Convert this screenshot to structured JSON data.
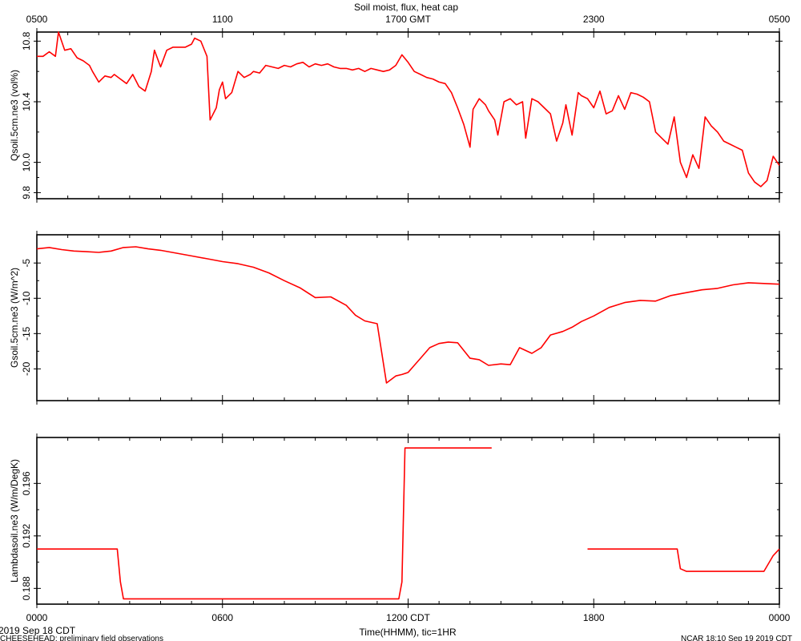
{
  "title": "Soil moist, flux, heat cap",
  "top_axis_ticks": [
    "0500",
    "1100",
    "1700 GMT",
    "2300",
    "0500"
  ],
  "bottom_axis_ticks": [
    "0000",
    "0600",
    "1200 CDT",
    "1800",
    "0000"
  ],
  "x_axis_label": "Time(HHMM), tic=1HR",
  "date_label": "2019 Sep 18 CDT",
  "footer_left": "CHEESEHEAD: preliminary field observations",
  "footer_right": "NCAR 18:10 Sep 19 2019 CDT",
  "colors": {
    "line": "#ff0000",
    "axis": "#000000",
    "background": "#ffffff"
  },
  "chart_data": [
    {
      "type": "line",
      "ylabel": "Qsoil.5cm.ne3 (vol%)",
      "xlim": [
        0,
        24
      ],
      "ylim": [
        9.76,
        10.86
      ],
      "yticks": [
        9.8,
        10.0,
        10.4,
        10.8
      ],
      "ytick_labels": [
        "9.8",
        "10.0",
        "10.4",
        "10.8"
      ],
      "series": [
        {
          "x": [
            0,
            0.2,
            0.4,
            0.6,
            0.7,
            0.9,
            1.1,
            1.3,
            1.5,
            1.7,
            1.8,
            2.0,
            2.2,
            2.4,
            2.5,
            2.7,
            2.9,
            3.1,
            3.3,
            3.5,
            3.7,
            3.8,
            4.0,
            4.2,
            4.4,
            4.6,
            4.8,
            5.0,
            5.1,
            5.3,
            5.5,
            5.6,
            5.8,
            5.9,
            6.0,
            6.1,
            6.3,
            6.5,
            6.7,
            6.9,
            7.0,
            7.2,
            7.4,
            7.6,
            7.8,
            8.0,
            8.2,
            8.4,
            8.6,
            8.8,
            9.0,
            9.2,
            9.4,
            9.6,
            9.8,
            10.0,
            10.2,
            10.4,
            10.6,
            10.8,
            11.0,
            11.2,
            11.4,
            11.6,
            11.8,
            12.0,
            12.2,
            12.4,
            12.6,
            12.8,
            13.0,
            13.2,
            13.4,
            13.6,
            13.8,
            14.0,
            14.1,
            14.3,
            14.5,
            14.6,
            14.8,
            14.9,
            15.1,
            15.3,
            15.5,
            15.7,
            15.8,
            16.0,
            16.2,
            16.4,
            16.6,
            16.8,
            17.0,
            17.1,
            17.3,
            17.5,
            17.6,
            17.8,
            18.0,
            18.2,
            18.4,
            18.6,
            18.8,
            19.0,
            19.2,
            19.4,
            19.6,
            19.8,
            20.0,
            20.2,
            20.4,
            20.6,
            20.8,
            21.0,
            21.2,
            21.4,
            21.6,
            21.8,
            22.0,
            22.2,
            22.4,
            22.6,
            22.8,
            23.0,
            23.2,
            23.4,
            23.6,
            23.8,
            24.0
          ],
          "y": [
            10.7,
            10.7,
            10.73,
            10.7,
            10.86,
            10.74,
            10.75,
            10.69,
            10.67,
            10.64,
            10.6,
            10.53,
            10.57,
            10.56,
            10.58,
            10.55,
            10.52,
            10.58,
            10.5,
            10.47,
            10.6,
            10.74,
            10.63,
            10.74,
            10.76,
            10.76,
            10.76,
            10.78,
            10.82,
            10.8,
            10.7,
            10.28,
            10.36,
            10.48,
            10.53,
            10.42,
            10.46,
            10.6,
            10.56,
            10.58,
            10.6,
            10.59,
            10.64,
            10.63,
            10.62,
            10.64,
            10.63,
            10.65,
            10.66,
            10.63,
            10.65,
            10.64,
            10.65,
            10.63,
            10.62,
            10.62,
            10.61,
            10.62,
            10.6,
            10.62,
            10.61,
            10.6,
            10.61,
            10.64,
            10.71,
            10.66,
            10.6,
            10.58,
            10.56,
            10.55,
            10.53,
            10.52,
            10.46,
            10.36,
            10.25,
            10.1,
            10.35,
            10.42,
            10.38,
            10.34,
            10.28,
            10.18,
            10.4,
            10.42,
            10.38,
            10.4,
            10.16,
            10.42,
            10.4,
            10.36,
            10.32,
            10.14,
            10.26,
            10.38,
            10.18,
            10.46,
            10.44,
            10.42,
            10.36,
            10.47,
            10.32,
            10.34,
            10.44,
            10.35,
            10.46,
            10.45,
            10.43,
            10.4,
            10.2,
            10.16,
            10.12,
            10.3,
            10.0,
            9.9,
            10.05,
            9.96,
            10.3,
            10.24,
            10.2,
            10.14,
            10.12,
            10.1,
            10.08,
            9.93,
            9.87,
            9.84,
            9.88,
            10.04,
            9.98
          ]
        }
      ]
    },
    {
      "type": "line",
      "ylabel": "Gsoil.5cm.ne3 (W/m^2)",
      "xlim": [
        0,
        24
      ],
      "ylim": [
        -24.5,
        -1.0
      ],
      "yticks": [
        -20,
        -15,
        -10,
        -5
      ],
      "ytick_labels": [
        "-20",
        "-15",
        "-10",
        "-5"
      ],
      "series": [
        {
          "x": [
            0,
            0.4,
            0.8,
            1.2,
            1.6,
            2.0,
            2.4,
            2.8,
            3.2,
            3.6,
            4.0,
            4.5,
            5.0,
            5.5,
            6.0,
            6.5,
            7.0,
            7.5,
            8.0,
            8.5,
            9.0,
            9.5,
            10.0,
            10.3,
            10.6,
            11.0,
            11.3,
            11.6,
            11.8,
            12.0,
            12.2,
            12.4,
            12.7,
            13.0,
            13.3,
            13.6,
            14.0,
            14.3,
            14.6,
            15.0,
            15.3,
            15.6,
            16.0,
            16.3,
            16.6,
            17.0,
            17.3,
            17.6,
            18.0,
            18.5,
            19.0,
            19.5,
            20.0,
            20.5,
            21.0,
            21.5,
            22.0,
            22.5,
            23.0,
            23.5,
            24.0
          ],
          "y": [
            -3.0,
            -2.8,
            -3.1,
            -3.3,
            -3.4,
            -3.5,
            -3.3,
            -2.8,
            -2.7,
            -3.0,
            -3.2,
            -3.6,
            -4.0,
            -4.4,
            -4.8,
            -5.1,
            -5.6,
            -6.4,
            -7.5,
            -8.5,
            -9.9,
            -9.8,
            -11.0,
            -12.4,
            -13.2,
            -13.6,
            -22.0,
            -21.0,
            -20.8,
            -20.5,
            -19.5,
            -18.5,
            -17.0,
            -16.4,
            -16.2,
            -16.3,
            -18.5,
            -18.7,
            -19.5,
            -19.3,
            -19.4,
            -17.0,
            -17.8,
            -17.0,
            -15.2,
            -14.7,
            -14.1,
            -13.3,
            -12.5,
            -11.3,
            -10.6,
            -10.3,
            -10.4,
            -9.6,
            -9.2,
            -8.8,
            -8.6,
            -8.1,
            -7.8,
            -7.9,
            -8.0
          ]
        }
      ]
    },
    {
      "type": "line",
      "ylabel": "Lambdasoil.ne3 (W/m/DegK)",
      "xlim": [
        0,
        24
      ],
      "ylim": [
        0.1868,
        0.1995
      ],
      "yticks": [
        0.188,
        0.192,
        0.196
      ],
      "ytick_labels": [
        "0.188",
        "0.192",
        "0.196"
      ],
      "series": [
        {
          "segments": [
            {
              "x": [
                0,
                2.6,
                2.7,
                2.8,
                3.0,
                4.0,
                6.0,
                8.0,
                10.0,
                11.7,
                11.8,
                11.9,
                12.5,
                14.0,
                14.7
              ],
              "y": [
                0.191,
                0.191,
                0.1885,
                0.1872,
                0.1872,
                0.1872,
                0.1872,
                0.1872,
                0.1872,
                0.1872,
                0.1885,
                0.1987,
                0.1987,
                0.1987,
                0.1987
              ]
            },
            {
              "x": [
                17.8,
                20.7,
                20.8,
                21.0,
                23.5,
                23.8,
                24.0
              ],
              "y": [
                0.191,
                0.191,
                0.1895,
                0.1893,
                0.1893,
                0.1905,
                0.191
              ]
            }
          ]
        }
      ]
    }
  ]
}
